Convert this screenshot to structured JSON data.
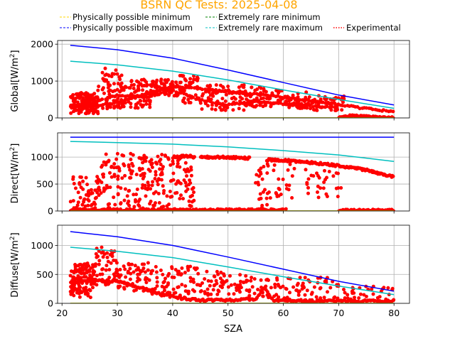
{
  "chart_data": [
    {
      "type": "scatter",
      "ylabel": "Global[W/m$^2$]",
      "xlim": [
        19.2,
        82.8
      ],
      "ylim": [
        0,
        2100
      ],
      "yticks": [
        0,
        1000,
        2000
      ],
      "grid": true,
      "lines": {
        "phys_min": {
          "x": [
            21.5,
            80
          ],
          "y": [
            0,
            0
          ]
        },
        "phys_max": {
          "x": [
            21.5,
            30,
            40,
            50,
            60,
            70,
            80
          ],
          "y": [
            1970,
            1850,
            1620,
            1300,
            960,
            620,
            350
          ]
        },
        "rare_min": {
          "x": [
            21.5,
            80
          ],
          "y": [
            0,
            0
          ]
        },
        "rare_max": {
          "x": [
            21.5,
            30,
            40,
            50,
            60,
            70,
            80
          ],
          "y": [
            1540,
            1440,
            1270,
            1030,
            760,
            500,
            260
          ]
        }
      },
      "exp_segments": [
        {
          "x0": 21.5,
          "x1": 26.5,
          "ymin": 120,
          "ymax": 700,
          "n": 140
        },
        {
          "x0": 26.5,
          "x1": 31,
          "ymin": 250,
          "ymax": 1350,
          "n": 70
        },
        {
          "x0": 31,
          "x1": 36,
          "ymin": 250,
          "ymax": 1050,
          "n": 70
        },
        {
          "x0": 36,
          "x1": 40,
          "ymin": 600,
          "ymax": 1050,
          "n": 50
        },
        {
          "x0": 40,
          "x1": 45,
          "ymin": 400,
          "ymax": 1150,
          "n": 60
        },
        {
          "x0": 45,
          "x1": 53,
          "ymin": 200,
          "ymax": 900,
          "n": 70
        },
        {
          "x0": 53,
          "x1": 60,
          "ymin": 300,
          "ymax": 850,
          "n": 60
        },
        {
          "x0": 60,
          "x1": 65,
          "ymin": 250,
          "ymax": 700,
          "n": 45
        },
        {
          "x0": 65,
          "x1": 71,
          "ymin": 200,
          "ymax": 600,
          "n": 45
        }
      ],
      "exp_bands": [
        {
          "x": [
            21.5,
            25,
            30,
            35,
            40,
            45,
            50,
            55,
            60,
            65,
            70,
            75,
            80
          ],
          "y": [
            350,
            300,
            420,
            650,
            860,
            800,
            700,
            640,
            560,
            470,
            360,
            250,
            170
          ],
          "n": 150
        },
        {
          "x": [
            21.5,
            25,
            30,
            35,
            40,
            45,
            50,
            55,
            60,
            65,
            70
          ],
          "y": [
            280,
            380,
            620,
            550,
            750,
            480,
            350,
            450,
            380,
            320,
            280
          ],
          "n": 110
        },
        {
          "x": [
            70,
            72,
            75,
            78,
            80
          ],
          "y": [
            20,
            60,
            40,
            20,
            10
          ],
          "n": 50
        }
      ]
    },
    {
      "type": "scatter",
      "ylabel": "Direct[W/m$^2$]",
      "xlim": [
        19.2,
        82.8
      ],
      "ylim": [
        0,
        1450
      ],
      "yticks": [
        0,
        500,
        1000
      ],
      "grid": true,
      "lines": {
        "phys_min": {
          "x": [
            21.5,
            80
          ],
          "y": [
            0,
            0
          ]
        },
        "phys_max": {
          "x": [
            21.5,
            80
          ],
          "y": [
            1370,
            1370
          ]
        },
        "rare_min": {
          "x": [
            21.5,
            80
          ],
          "y": [
            0,
            0
          ]
        },
        "rare_max": {
          "x": [
            21.5,
            30,
            40,
            50,
            60,
            70,
            80
          ],
          "y": [
            1290,
            1270,
            1240,
            1190,
            1120,
            1040,
            920
          ]
        }
      },
      "exp_segments": [
        {
          "x0": 21.5,
          "x1": 27,
          "ymin": 0,
          "ymax": 650,
          "n": 60
        },
        {
          "x0": 27,
          "x1": 34,
          "ymin": 0,
          "ymax": 1100,
          "n": 90
        },
        {
          "x0": 34,
          "x1": 40,
          "ymin": 0,
          "ymax": 1050,
          "n": 90
        },
        {
          "x0": 40,
          "x1": 44,
          "ymin": 0,
          "ymax": 1000,
          "n": 50
        },
        {
          "x0": 55,
          "x1": 62,
          "ymin": 0,
          "ymax": 900,
          "n": 50
        },
        {
          "x0": 64,
          "x1": 70.5,
          "ymin": 250,
          "ymax": 800,
          "n": 30
        }
      ],
      "exp_bands": [
        {
          "x": [
            21.5,
            30,
            40,
            44,
            46,
            50,
            55,
            60
          ],
          "y": [
            20,
            20,
            20,
            20,
            20,
            20,
            20,
            20
          ],
          "n": 200
        },
        {
          "x": [
            40,
            43,
            44
          ],
          "y": [
            1000,
            1020,
            1010
          ],
          "n": 30
        },
        {
          "x": [
            45,
            48,
            51,
            54
          ],
          "y": [
            1000,
            1000,
            990,
            980
          ],
          "n": 60
        },
        {
          "x": [
            57,
            60,
            65,
            70,
            75,
            80
          ],
          "y": [
            950,
            940,
            900,
            840,
            760,
            630
          ],
          "n": 140
        },
        {
          "x": [
            70,
            75,
            80
          ],
          "y": [
            10,
            10,
            10
          ],
          "n": 70
        }
      ]
    },
    {
      "type": "scatter",
      "ylabel": "Diffuse[W/m$^2$]",
      "xlabel": "SZA",
      "xlim": [
        19.2,
        82.8
      ],
      "ylim": [
        0,
        1350
      ],
      "yticks": [
        0,
        500,
        1000
      ],
      "xticks": [
        20,
        30,
        40,
        50,
        60,
        70,
        80
      ],
      "grid": true,
      "lines": {
        "phys_min": {
          "x": [
            21.5,
            80
          ],
          "y": [
            0,
            0
          ]
        },
        "phys_max": {
          "x": [
            21.5,
            30,
            40,
            50,
            60,
            70,
            80
          ],
          "y": [
            1240,
            1150,
            1000,
            800,
            590,
            380,
            210
          ]
        },
        "rare_min": {
          "x": [
            21.5,
            80
          ],
          "y": [
            0,
            0
          ]
        },
        "rare_max": {
          "x": [
            21.5,
            30,
            40,
            50,
            60,
            70,
            80
          ],
          "y": [
            970,
            900,
            790,
            630,
            460,
            300,
            150
          ]
        }
      },
      "exp_segments": [
        {
          "x0": 21.5,
          "x1": 26,
          "ymin": 100,
          "ymax": 700,
          "n": 120
        },
        {
          "x0": 26,
          "x1": 30,
          "ymin": 300,
          "ymax": 980,
          "n": 50
        },
        {
          "x0": 30,
          "x1": 36,
          "ymin": 200,
          "ymax": 700,
          "n": 60
        },
        {
          "x0": 36,
          "x1": 45,
          "ymin": 100,
          "ymax": 650,
          "n": 80
        },
        {
          "x0": 45,
          "x1": 55,
          "ymin": 100,
          "ymax": 550,
          "n": 70
        },
        {
          "x0": 55,
          "x1": 70,
          "ymin": 50,
          "ymax": 450,
          "n": 80
        },
        {
          "x0": 70,
          "x1": 80,
          "ymin": 0,
          "ymax": 300,
          "n": 40
        }
      ],
      "exp_bands": [
        {
          "x": [
            21.5,
            25,
            30,
            35,
            38,
            40,
            42,
            45,
            50,
            55,
            56.5,
            58,
            60,
            65,
            70,
            75,
            80
          ],
          "y": [
            350,
            400,
            380,
            250,
            150,
            120,
            80,
            60,
            60,
            70,
            280,
            60,
            50,
            40,
            40,
            40,
            40
          ],
          "n": 260
        }
      ]
    }
  ],
  "figure": {
    "title": "BSRN QC Tests: 2025-04-08",
    "xlabel": "SZA",
    "legend": [
      {
        "label": "Physically possible minimum",
        "color": "#FFD700"
      },
      {
        "label": "Physically possible maximum",
        "color": "#0000FF"
      },
      {
        "label": "Extremely rare minimum",
        "color": "#008000"
      },
      {
        "label": "Extremely rare maximum",
        "color": "#00BFBF"
      },
      {
        "label": "Experimental",
        "color": "#FF0000"
      }
    ],
    "colors": {
      "phys_min": "#FFD700",
      "phys_max": "#0000FF",
      "rare_min": "#008000",
      "rare_max": "#00BFBF",
      "experimental": "#FF0000",
      "grid": "#B0B0B0"
    }
  }
}
